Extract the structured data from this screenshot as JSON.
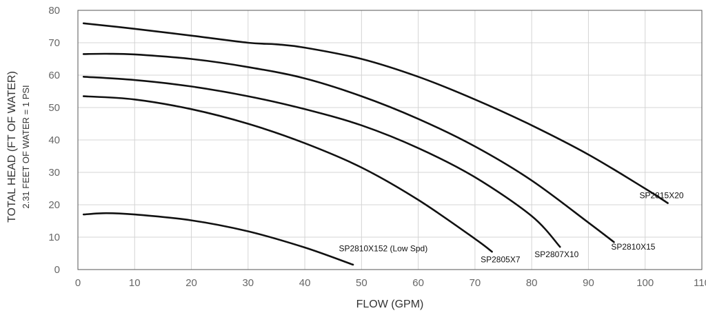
{
  "chart_data": {
    "type": "line",
    "title": "",
    "xlabel": "FLOW (GPM)",
    "ylabel": "TOTAL HEAD (FT OF WATER)",
    "ylabel_sub": "2.31 FEET OF WATER = 1 PSI",
    "xlim": [
      0,
      110
    ],
    "ylim": [
      0,
      80
    ],
    "xticks": [
      0,
      10,
      20,
      30,
      40,
      50,
      60,
      70,
      80,
      90,
      100,
      110
    ],
    "yticks": [
      0,
      10,
      20,
      30,
      40,
      50,
      60,
      70,
      80
    ],
    "grid": true,
    "legend": "none",
    "series": [
      {
        "name": "SP2815X20",
        "x": [
          1,
          10,
          20,
          30,
          35,
          40,
          50,
          60,
          70,
          80,
          90,
          100,
          104
        ],
        "y": [
          76,
          74.3,
          72.2,
          70,
          69.5,
          68.5,
          65,
          59.5,
          52.5,
          44.5,
          35.5,
          25,
          20.5
        ]
      },
      {
        "name": "SP2810X15",
        "x": [
          1,
          5,
          10,
          20,
          30,
          40,
          50,
          60,
          70,
          80,
          90,
          94.5
        ],
        "y": [
          66.5,
          66.6,
          66.4,
          65,
          62.5,
          59,
          53.5,
          46.5,
          38,
          27.5,
          14.5,
          8.5
        ]
      },
      {
        "name": "SP2807X10",
        "x": [
          1,
          10,
          20,
          30,
          40,
          50,
          60,
          70,
          80,
          85
        ],
        "y": [
          59.5,
          58.5,
          56.5,
          53.5,
          49.5,
          44.5,
          37.5,
          28.5,
          16.5,
          7
        ]
      },
      {
        "name": "SP2805X7",
        "x": [
          1,
          10,
          20,
          30,
          40,
          50,
          60,
          70,
          73
        ],
        "y": [
          53.5,
          52.5,
          49.5,
          45,
          39,
          31.5,
          21.5,
          9.5,
          5.5
        ]
      },
      {
        "name": "SP2810X152 (Low Spd)",
        "x": [
          1,
          5,
          10,
          20,
          30,
          40,
          48.5
        ],
        "y": [
          17,
          17.4,
          17,
          15.2,
          11.8,
          6.8,
          1.5
        ]
      }
    ],
    "labels": [
      {
        "text": "SP2815X20",
        "x": 99,
        "y": 22
      },
      {
        "text": "SP2810X15",
        "x": 94,
        "y": 6.2
      },
      {
        "text": "SP2807X10",
        "x": 80.5,
        "y": 3.8
      },
      {
        "text": "SP2805X7",
        "x": 71,
        "y": 2.2
      },
      {
        "text": "SP2810X152 (Low Spd)",
        "x": 46,
        "y": 5.6
      }
    ]
  }
}
